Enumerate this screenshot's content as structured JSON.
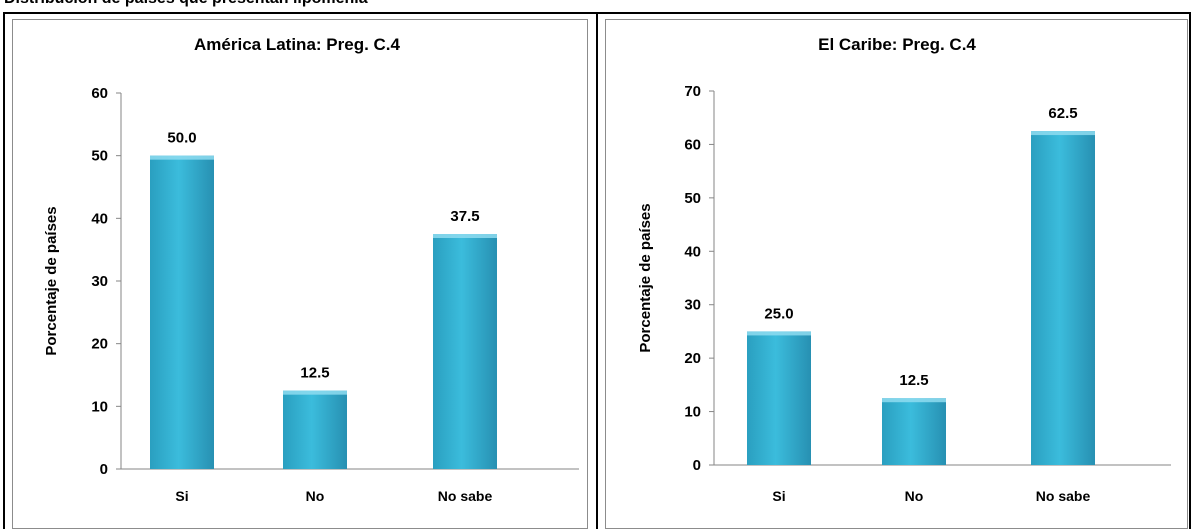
{
  "header": {
    "text": "Distribución de países que presentan lipomenia"
  },
  "chart_data": [
    {
      "type": "bar",
      "title": "América Latina: Preg. C.4",
      "ylabel": "Porcentaje de países",
      "xlabel": "",
      "categories": [
        "Si",
        "No",
        "No sabe"
      ],
      "values": [
        50.0,
        12.5,
        37.5
      ],
      "value_labels": [
        "50.0",
        "12.5",
        "37.5"
      ],
      "ylim": [
        0,
        60
      ],
      "yticks": [
        "0",
        "10",
        "20",
        "30",
        "40",
        "50",
        "60"
      ],
      "bar_color": "#3bbcdc",
      "grid": false,
      "legend": "none"
    },
    {
      "type": "bar",
      "title": "El Caribe: Preg. C.4",
      "ylabel": "Porcentaje de países",
      "xlabel": "",
      "categories": [
        "Si",
        "No",
        "No sabe"
      ],
      "values": [
        25.0,
        12.5,
        62.5
      ],
      "value_labels": [
        "25.0",
        "12.5",
        "62.5"
      ],
      "ylim": [
        0,
        70
      ],
      "yticks": [
        "0",
        "10",
        "20",
        "30",
        "40",
        "50",
        "60",
        "70"
      ],
      "bar_color": "#3bbcdc",
      "grid": false,
      "legend": "none"
    }
  ]
}
